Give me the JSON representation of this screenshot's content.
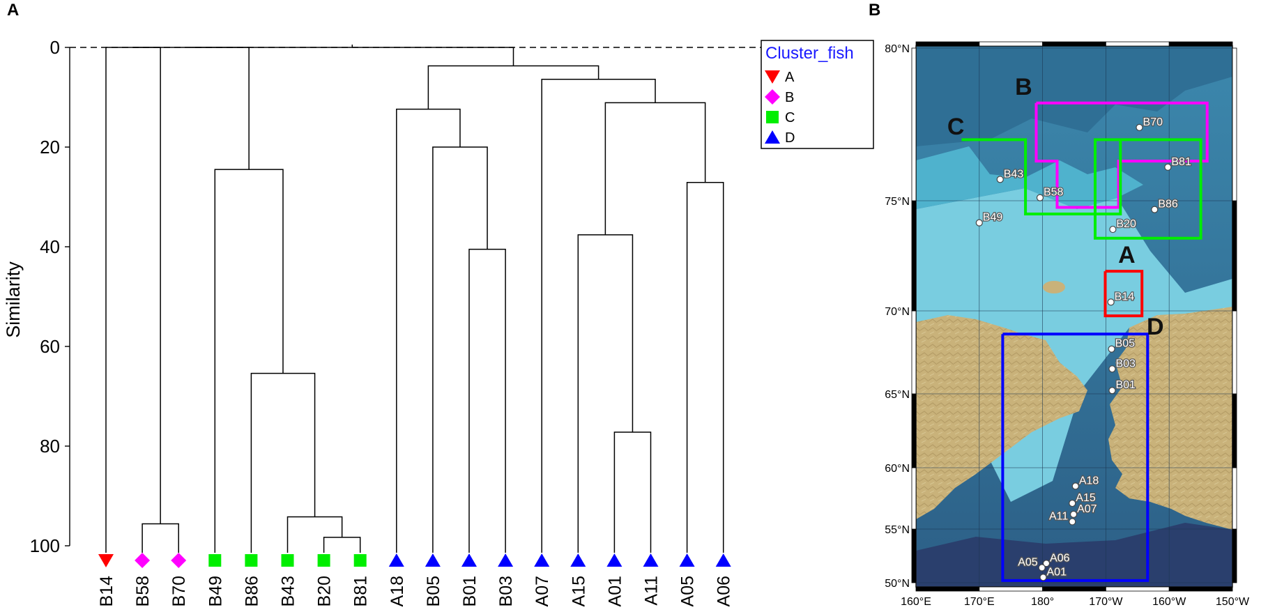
{
  "panels": {
    "a": {
      "label": "A"
    },
    "b": {
      "label": "B"
    }
  },
  "chart_data": [
    {
      "type": "dendrogram",
      "panel": "A",
      "ylabel": "Similarity",
      "ylim": [
        0,
        100
      ],
      "yticks": [
        0,
        20,
        40,
        60,
        80,
        100
      ],
      "leaves": [
        {
          "name": "B14",
          "cluster": "A"
        },
        {
          "name": "B58",
          "cluster": "B"
        },
        {
          "name": "B70",
          "cluster": "B"
        },
        {
          "name": "B49",
          "cluster": "C"
        },
        {
          "name": "B86",
          "cluster": "C"
        },
        {
          "name": "B43",
          "cluster": "C"
        },
        {
          "name": "B20",
          "cluster": "C"
        },
        {
          "name": "B81",
          "cluster": "C"
        },
        {
          "name": "A18",
          "cluster": "D"
        },
        {
          "name": "B05",
          "cluster": "D"
        },
        {
          "name": "B01",
          "cluster": "D"
        },
        {
          "name": "B03",
          "cluster": "D"
        },
        {
          "name": "A07",
          "cluster": "D"
        },
        {
          "name": "A15",
          "cluster": "D"
        },
        {
          "name": "A01",
          "cluster": "D"
        },
        {
          "name": "A11",
          "cluster": "D"
        },
        {
          "name": "A05",
          "cluster": "D"
        },
        {
          "name": "A06",
          "cluster": "D"
        }
      ],
      "merges": [
        {
          "id": "n1",
          "children": [
            "B20",
            "B81"
          ],
          "similarity": 98.3
        },
        {
          "id": "n2",
          "children": [
            "B58",
            "B70"
          ],
          "similarity": 95.6
        },
        {
          "id": "n3",
          "children": [
            "B43",
            "n1"
          ],
          "similarity": 94.2
        },
        {
          "id": "n4",
          "children": [
            "A01",
            "A11"
          ],
          "similarity": 77.2
        },
        {
          "id": "n5",
          "children": [
            "B86",
            "n3"
          ],
          "similarity": 65.4
        },
        {
          "id": "n6",
          "children": [
            "B01",
            "B03"
          ],
          "similarity": 40.5
        },
        {
          "id": "n7",
          "children": [
            "A15",
            "n4"
          ],
          "similarity": 37.6
        },
        {
          "id": "n8",
          "children": [
            "A05",
            "A06"
          ],
          "similarity": 27.1
        },
        {
          "id": "n9",
          "children": [
            "B49",
            "n5"
          ],
          "similarity": 24.5
        },
        {
          "id": "n10",
          "children": [
            "B05",
            "n6"
          ],
          "similarity": 20.0
        },
        {
          "id": "n11",
          "children": [
            "A18",
            "n10"
          ],
          "similarity": 12.4
        },
        {
          "id": "n12",
          "children": [
            "n7",
            "n8"
          ],
          "similarity": 11.1
        },
        {
          "id": "n13",
          "children": [
            "A07",
            "n12"
          ],
          "similarity": 6.4
        },
        {
          "id": "n14",
          "children": [
            "n11",
            "n13"
          ],
          "similarity": 3.7
        },
        {
          "id": "n15",
          "children": [
            "B14",
            "n2"
          ],
          "similarity": 0
        },
        {
          "id": "n16",
          "children": [
            "n15",
            "n9"
          ],
          "similarity": 0
        },
        {
          "id": "n17",
          "children": [
            "n16",
            "n14"
          ],
          "similarity": 0
        }
      ],
      "cutoff_line": 0,
      "legend": {
        "title": "Cluster_fish",
        "position": "top-right",
        "items": [
          {
            "label": "A",
            "marker": "triangle-down",
            "color": "#ff0000"
          },
          {
            "label": "B",
            "marker": "diamond",
            "color": "#ff00ff"
          },
          {
            "label": "C",
            "marker": "square",
            "color": "#00ee00"
          },
          {
            "label": "D",
            "marker": "triangle-up",
            "color": "#0000ff"
          }
        ]
      }
    },
    {
      "type": "map",
      "panel": "B",
      "lon_range": [
        160,
        210
      ],
      "lat_range": [
        50,
        80
      ],
      "xticks": [
        {
          "lon": 160,
          "label": "160°E"
        },
        {
          "lon": 170,
          "label": "170°E"
        },
        {
          "lon": 180,
          "label": "180°"
        },
        {
          "lon": 190,
          "label": "170°W"
        },
        {
          "lon": 200,
          "label": "160°W"
        },
        {
          "lon": 210,
          "label": "150°W"
        }
      ],
      "yticks": [
        {
          "lat": 50,
          "label": "50°N"
        },
        {
          "lat": 55,
          "label": "55°N"
        },
        {
          "lat": 60,
          "label": "60°N"
        },
        {
          "lat": 65,
          "label": "65°N"
        },
        {
          "lat": 70,
          "label": "70°N"
        },
        {
          "lat": 75,
          "label": "75°N"
        },
        {
          "lat": 80,
          "label": "80°N"
        }
      ],
      "stations": [
        {
          "name": "B70",
          "lon": 195.3,
          "lat": 77.4
        },
        {
          "name": "B81",
          "lon": 199.8,
          "lat": 76.1
        },
        {
          "name": "B43",
          "lon": 173.3,
          "lat": 75.7
        },
        {
          "name": "B58",
          "lon": 179.6,
          "lat": 75.1
        },
        {
          "name": "B86",
          "lon": 197.7,
          "lat": 74.6
        },
        {
          "name": "B49",
          "lon": 170.0,
          "lat": 74.0
        },
        {
          "name": "B20",
          "lon": 191.1,
          "lat": 73.7
        },
        {
          "name": "B14",
          "lon": 190.8,
          "lat": 70.4
        },
        {
          "name": "B05",
          "lon": 190.9,
          "lat": 67.7
        },
        {
          "name": "B03",
          "lon": 191.0,
          "lat": 66.5
        },
        {
          "name": "B01",
          "lon": 191.0,
          "lat": 65.2
        },
        {
          "name": "A18",
          "lon": 185.2,
          "lat": 58.5
        },
        {
          "name": "A15",
          "lon": 184.7,
          "lat": 57.1
        },
        {
          "name": "A07",
          "lon": 184.9,
          "lat": 56.2
        },
        {
          "name": "A11",
          "lon": 184.7,
          "lat": 55.6
        },
        {
          "name": "A06",
          "lon": 180.6,
          "lat": 51.8
        },
        {
          "name": "A05",
          "lon": 179.9,
          "lat": 51.4
        },
        {
          "name": "A01",
          "lon": 180.1,
          "lat": 50.5
        }
      ],
      "regions": [
        {
          "label": "A",
          "color": "#ff0000",
          "polygon": [
            [
              189.9,
              71.8
            ],
            [
              195.7,
              71.8
            ],
            [
              195.7,
              69.7
            ],
            [
              189.9,
              69.7
            ],
            [
              189.9,
              71.8
            ]
          ]
        },
        {
          "label": "B",
          "color": "#ff00ff",
          "polygon": [
            [
              179.0,
              78.2
            ],
            [
              206.0,
              78.2
            ],
            [
              206.0,
              76.3
            ],
            [
              192.0,
              76.3
            ],
            [
              192.0,
              74.7
            ],
            [
              182.3,
              74.7
            ],
            [
              182.3,
              76.3
            ],
            [
              179.0,
              76.3
            ],
            [
              179.0,
              78.2
            ]
          ]
        },
        {
          "label": "C",
          "color": "#00ee00",
          "polygon": [
            [
              167.2,
              77.0
            ],
            [
              177.3,
              77.0
            ],
            [
              177.3,
              74.4
            ],
            [
              188.3,
              74.4
            ],
            [
              188.3,
              77.0
            ],
            [
              192.3,
              77.0
            ],
            [
              192.3,
              74.4
            ],
            [
              188.3,
              74.4
            ],
            [
              188.3,
              73.3
            ],
            [
              205.0,
              73.3
            ],
            [
              205.0,
              77.0
            ],
            [
              192.3,
              77.0
            ]
          ]
        },
        {
          "label": "D",
          "color": "#0000ff",
          "polygon": [
            [
              173.7,
              68.6
            ],
            [
              196.6,
              68.6
            ],
            [
              196.6,
              50.2
            ],
            [
              173.7,
              50.2
            ],
            [
              173.7,
              68.6
            ]
          ]
        }
      ]
    }
  ]
}
